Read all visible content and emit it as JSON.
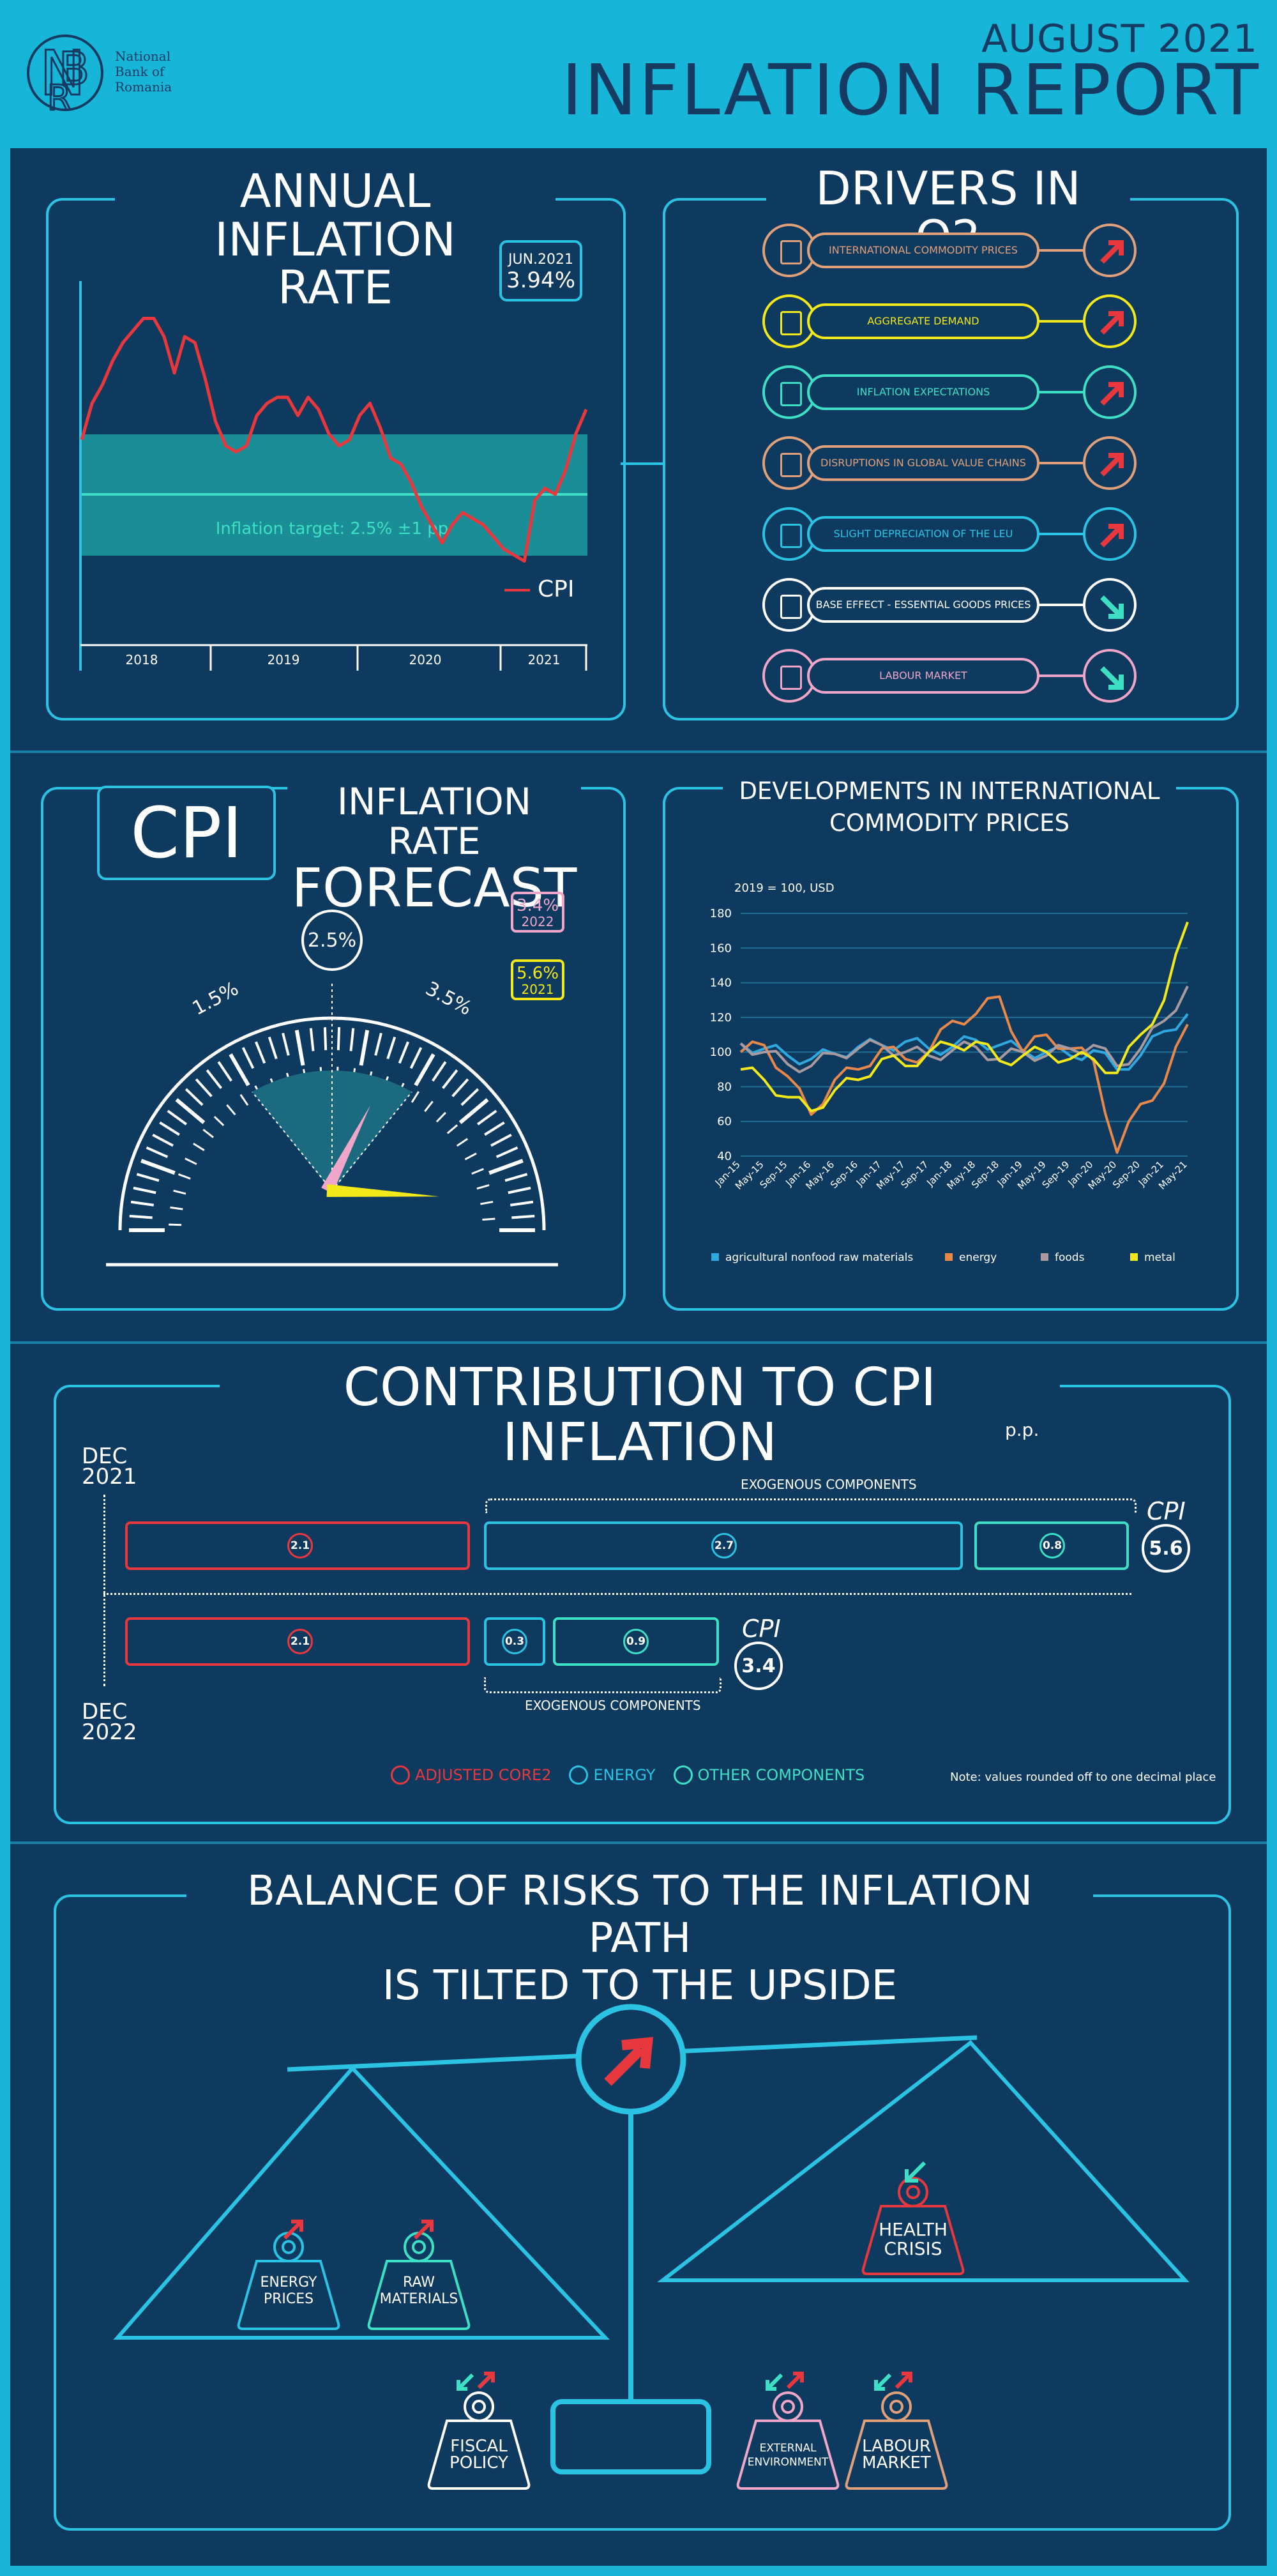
{
  "header": {
    "logo_line1": "National",
    "logo_line2": "Bank of",
    "logo_line3": "Romania",
    "date": "AUGUST 2021",
    "title": "INFLATION REPORT"
  },
  "annual": {
    "title_line1": "ANNUAL INFLATION",
    "title_line2": "RATE",
    "callout_date": "JUN.2021",
    "callout_value": "3.94%",
    "target_label": "Inflation target: 2.5% ±1 pp",
    "legend": "CPI",
    "years": [
      "2018",
      "2019",
      "2020",
      "2021"
    ],
    "cpi_values": [
      3.4,
      4.0,
      4.3,
      4.7,
      5.0,
      5.2,
      5.4,
      5.4,
      5.1,
      4.5,
      5.1,
      5.0,
      4.4,
      3.7,
      3.3,
      3.2,
      3.3,
      3.8,
      4.0,
      4.1,
      4.1,
      3.8,
      4.1,
      3.9,
      3.5,
      3.3,
      3.4,
      3.8,
      4.0,
      3.6,
      3.1,
      3.0,
      2.7,
      2.3,
      2.0,
      1.7,
      2.0,
      2.2,
      2.1,
      2.0,
      1.8,
      1.6,
      1.5,
      1.4,
      2.4,
      2.6,
      2.5,
      2.9,
      3.5,
      3.9
    ],
    "series_color": "#e8383d"
  },
  "drivers": {
    "title": "DRIVERS IN Q2",
    "items": [
      {
        "label": "INTERNATIONAL COMMODITY PRICES",
        "color": "#e0a07a",
        "direction": "up",
        "icon": "commodity-icon"
      },
      {
        "label": "AGGREGATE DEMAND",
        "color": "#f2e81a",
        "direction": "up",
        "icon": "chart-icon"
      },
      {
        "label": "INFLATION EXPECTATIONS",
        "color": "#3de0c4",
        "direction": "up",
        "icon": "expectations-icon"
      },
      {
        "label": "DISRUPTIONS IN GLOBAL VALUE CHAINS",
        "color": "#e0a07a",
        "direction": "up",
        "icon": "chain-icon"
      },
      {
        "label": "SLIGHT DEPRECIATION OF THE LEU",
        "color": "#2bc3e3",
        "direction": "up",
        "icon": "money-icon"
      },
      {
        "label": "BASE EFFECT - ESSENTIAL GOODS PRICES",
        "color": "#ffffff",
        "direction": "down",
        "icon": "goods-icon"
      },
      {
        "label": "LABOUR MARKET",
        "color": "#f0a6c8",
        "direction": "down",
        "icon": "labour-icon"
      }
    ]
  },
  "forecast": {
    "cpi_label": "CPI",
    "title_line1": "INFLATION RATE",
    "title_line2": "FORECAST",
    "target": "2.5%",
    "low": "1.5%",
    "high": "3.5%",
    "v2022": "3.4%",
    "y2022": "2022",
    "v2021": "5.6%",
    "y2021": "2021",
    "color2022": "#f0a6c8",
    "color2021": "#f2e81a"
  },
  "commodities": {
    "title_line1": "DEVELOPMENTS IN INTERNATIONAL",
    "title_line2": "COMMODITY PRICES",
    "unit": "2019 = 100, USD",
    "chart_data": {
      "type": "line",
      "yticks": [
        "180",
        "160",
        "140",
        "120",
        "100",
        "80",
        "60",
        "40"
      ],
      "ylim": [
        40,
        180
      ],
      "x": [
        "Jan-15",
        "May-15",
        "Sep-15",
        "Jan-16",
        "May-16",
        "Sep-16",
        "Jan-17",
        "May-17",
        "Sep-17",
        "Jan-18",
        "May-18",
        "Sep-18",
        "Jan-19",
        "May-19",
        "Sep-19",
        "Jan-20",
        "May-20",
        "Sep-20",
        "Jan-21",
        "May-21"
      ],
      "series": [
        {
          "name": "agricultural nonfood raw materials",
          "color": "#2fa8df",
          "values": [
            105,
            102,
            98,
            96,
            99,
            103,
            104,
            106,
            102,
            103,
            107,
            104,
            101,
            100,
            98,
            101,
            90,
            98,
            112,
            122
          ]
        },
        {
          "name": "energy",
          "color": "#e8884a",
          "values": [
            100,
            104,
            86,
            64,
            84,
            90,
            102,
            96,
            100,
            118,
            122,
            132,
            100,
            110,
            102,
            95,
            42,
            70,
            82,
            116
          ]
        },
        {
          "name": "foods",
          "color": "#a99aa0",
          "values": [
            105,
            100,
            93,
            92,
            99,
            102,
            104,
            100,
            98,
            101,
            103,
            96,
            100,
            98,
            102,
            104,
            92,
            102,
            118,
            138
          ]
        },
        {
          "name": "metal",
          "color": "#f2e81a",
          "values": [
            90,
            84,
            74,
            66,
            78,
            84,
            96,
            92,
            100,
            104,
            106,
            95,
            98,
            100,
            96,
            96,
            88,
            110,
            130,
            175
          ]
        }
      ]
    }
  },
  "contribution": {
    "title": "CONTRIBUTION TO CPI INFLATION",
    "unit": "p.p.",
    "dec2021_line1": "DEC",
    "dec2021_line2": "2021",
    "dec2022_line1": "DEC",
    "dec2022_line2": "2022",
    "exo_label": "EXOGENOUS COMPONENTS",
    "row2021": {
      "core": "2.1",
      "energy": "2.7",
      "other": "0.8",
      "cpi_label": "CPI",
      "total": "5.6"
    },
    "row2022": {
      "core": "2.1",
      "energy": "0.3",
      "other": "0.9",
      "cpi_label": "CPI",
      "total": "3.4"
    },
    "legend_core": "ADJUSTED CORE2",
    "legend_energy": "ENERGY",
    "legend_other": "OTHER COMPONENTS",
    "note": "Note: values rounded off to one decimal place",
    "colors": {
      "core": "#e8383d",
      "energy": "#2bc3e3",
      "other": "#3de0c4"
    }
  },
  "risks": {
    "title_line1": "BALANCE OF RISKS TO THE INFLATION PATH",
    "title_line2": "IS TILTED TO THE UPSIDE",
    "energy_l1": "ENERGY",
    "energy_l2": "PRICES",
    "raw_l1": "RAW",
    "raw_l2": "MATERIALS",
    "health_l1": "HEALTH",
    "health_l2": "CRISIS",
    "fiscal_l1": "FISCAL",
    "fiscal_l2": "POLICY",
    "external_l1": "EXTERNAL",
    "external_l2": "ENVIRONMENT",
    "labour_l1": "LABOUR",
    "labour_l2": "MARKET"
  }
}
